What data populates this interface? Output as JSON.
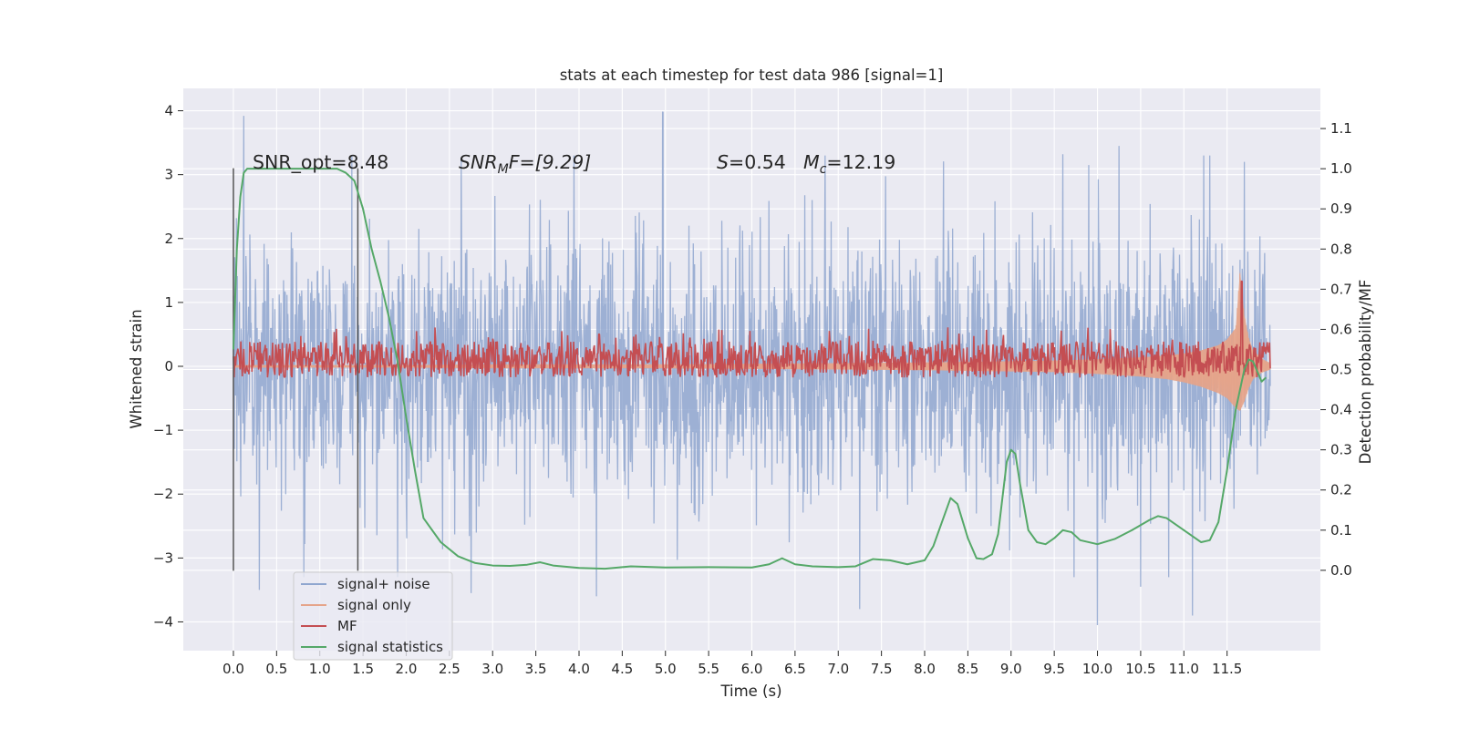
{
  "chart_data": {
    "type": "line",
    "title": "stats at each timestep for test data 986 [signal=1]",
    "xlabel": "Time (s)",
    "ylabel": "Whitened strain",
    "y2label": "Detection probability/MF",
    "xlim": [
      -0.58,
      12.58
    ],
    "ylim": [
      -4.45,
      4.35
    ],
    "y2lim": [
      -0.2,
      1.2
    ],
    "x_ticks": [
      0.0,
      0.5,
      1.0,
      1.5,
      2.0,
      2.5,
      3.0,
      3.5,
      4.0,
      4.5,
      5.0,
      5.5,
      6.0,
      6.5,
      7.0,
      7.5,
      8.0,
      8.5,
      9.0,
      9.5,
      10.0,
      10.5,
      11.0,
      11.5
    ],
    "x_tick_labels": [
      "0.0",
      "0.5",
      "1.0",
      "1.5",
      "2.0",
      "2.5",
      "3.0",
      "3.5",
      "4.0",
      "4.5",
      "5.0",
      "5.5",
      "6.0",
      "6.5",
      "7.0",
      "7.5",
      "8.0",
      "8.5",
      "9.0",
      "9.5",
      "10.0",
      "10.5",
      "11.0",
      "11.5"
    ],
    "y_ticks": [
      4,
      3,
      2,
      1,
      0,
      -1,
      -2,
      -3,
      -4
    ],
    "y_tick_labels": [
      "4",
      "3",
      "2",
      "1",
      "0",
      "−1",
      "−2",
      "−3",
      "−4"
    ],
    "y2_ticks": [
      1.1,
      1.0,
      0.9,
      0.8,
      0.7,
      0.6,
      0.5,
      0.4,
      0.3,
      0.2,
      0.1,
      0.0
    ],
    "y2_tick_labels": [
      "1.1",
      "1.0",
      "0.9",
      "0.8",
      "0.7",
      "0.6",
      "0.5",
      "0.4",
      "0.3",
      "0.2",
      "0.1",
      "0.0"
    ],
    "grid": true,
    "legend_placement": "lower-left",
    "annotations": {
      "snr_opt": "SNR_opt=8.48",
      "snr_mf_base": "SNR",
      "snr_mf_sub": "M",
      "snr_mf_rest": "F=[9.29]",
      "s_main": "S",
      "s_value": "=0.54",
      "mc_main": "M",
      "mc_sub": "c",
      "mc_value": "=12.19"
    },
    "vlines": [
      0.0,
      1.44
    ],
    "vline_range": [
      -3.2,
      3.1
    ],
    "series": [
      {
        "name": "signal+ noise",
        "color": "#8fa6cf",
        "t_range": [
          0.0,
          12.0
        ],
        "typical_abs_amplitude": 1.3,
        "peak_samples": [
          {
            "x": 0.12,
            "y": 3.92
          },
          {
            "x": 0.3,
            "y": -3.5
          },
          {
            "x": 2.75,
            "y": -3.55
          },
          {
            "x": 4.2,
            "y": -3.6
          },
          {
            "x": 4.97,
            "y": 3.98
          },
          {
            "x": 7.25,
            "y": -3.8
          },
          {
            "x": 9.6,
            "y": 3.32
          },
          {
            "x": 9.9,
            "y": 3.15
          },
          {
            "x": 10.0,
            "y": -4.05
          },
          {
            "x": 10.25,
            "y": 3.45
          },
          {
            "x": 10.5,
            "y": -3.45
          },
          {
            "x": 11.1,
            "y": -3.9
          },
          {
            "x": 11.3,
            "y": 3.3
          },
          {
            "x": 11.7,
            "y": 3.2
          }
        ]
      },
      {
        "name": "signal only",
        "color": "#e5a48a",
        "x": [
          0.0,
          1.0,
          2.0,
          3.0,
          4.0,
          5.0,
          6.0,
          7.0,
          8.0,
          9.0,
          9.5,
          10.0,
          10.5,
          10.8,
          11.0,
          11.2,
          11.4,
          11.5,
          11.6,
          11.65,
          11.7,
          11.75,
          11.8,
          11.9,
          12.0
        ],
        "upper": [
          0.02,
          0.02,
          0.02,
          0.03,
          0.03,
          0.03,
          0.04,
          0.05,
          0.06,
          0.08,
          0.09,
          0.11,
          0.14,
          0.17,
          0.2,
          0.25,
          0.33,
          0.42,
          0.6,
          1.5,
          0.8,
          0.45,
          0.25,
          0.12,
          0.05
        ],
        "lower": [
          -0.02,
          -0.02,
          -0.02,
          -0.03,
          -0.03,
          -0.03,
          -0.04,
          -0.05,
          -0.06,
          -0.08,
          -0.09,
          -0.12,
          -0.16,
          -0.2,
          -0.25,
          -0.32,
          -0.42,
          -0.5,
          -0.65,
          -0.7,
          -0.55,
          -0.35,
          -0.2,
          -0.1,
          -0.05
        ]
      },
      {
        "name": "MF",
        "color": "#c44e52",
        "t_range": [
          0.0,
          12.0
        ],
        "y2_band": [
          0.48,
          0.57
        ],
        "peak_samples": [
          {
            "x": 11.67,
            "y2": 0.72
          }
        ]
      },
      {
        "name": "signal statistics",
        "color": "#55a868",
        "x": [
          0.0,
          0.04,
          0.08,
          0.12,
          0.16,
          0.25,
          0.4,
          0.6,
          0.8,
          1.0,
          1.2,
          1.3,
          1.4,
          1.5,
          1.6,
          1.7,
          1.8,
          1.9,
          2.0,
          2.1,
          2.2,
          2.4,
          2.6,
          2.8,
          3.0,
          3.2,
          3.4,
          3.55,
          3.7,
          4.0,
          4.3,
          4.6,
          5.0,
          5.5,
          6.0,
          6.2,
          6.35,
          6.5,
          6.7,
          7.0,
          7.2,
          7.4,
          7.6,
          7.8,
          8.0,
          8.1,
          8.2,
          8.3,
          8.38,
          8.5,
          8.6,
          8.68,
          8.78,
          8.85,
          8.9,
          8.95,
          9.0,
          9.05,
          9.1,
          9.2,
          9.3,
          9.4,
          9.5,
          9.6,
          9.7,
          9.8,
          10.0,
          10.2,
          10.4,
          10.6,
          10.7,
          10.8,
          11.0,
          11.2,
          11.3,
          11.4,
          11.5,
          11.6,
          11.7,
          11.75,
          11.8,
          11.85,
          11.9,
          11.95
        ],
        "y2": [
          0.55,
          0.8,
          0.93,
          0.99,
          1.0,
          1.0,
          1.0,
          1.0,
          1.0,
          1.0,
          1.0,
          0.99,
          0.97,
          0.9,
          0.8,
          0.72,
          0.63,
          0.52,
          0.38,
          0.25,
          0.13,
          0.07,
          0.035,
          0.018,
          0.012,
          0.011,
          0.014,
          0.02,
          0.012,
          0.006,
          0.004,
          0.01,
          0.007,
          0.008,
          0.007,
          0.015,
          0.03,
          0.015,
          0.01,
          0.008,
          0.01,
          0.028,
          0.025,
          0.015,
          0.025,
          0.06,
          0.12,
          0.18,
          0.165,
          0.08,
          0.03,
          0.028,
          0.04,
          0.09,
          0.18,
          0.27,
          0.3,
          0.29,
          0.22,
          0.1,
          0.07,
          0.065,
          0.08,
          0.1,
          0.095,
          0.075,
          0.065,
          0.078,
          0.1,
          0.125,
          0.135,
          0.13,
          0.1,
          0.07,
          0.075,
          0.12,
          0.25,
          0.4,
          0.5,
          0.525,
          0.52,
          0.495,
          0.47,
          0.48
        ]
      }
    ]
  }
}
